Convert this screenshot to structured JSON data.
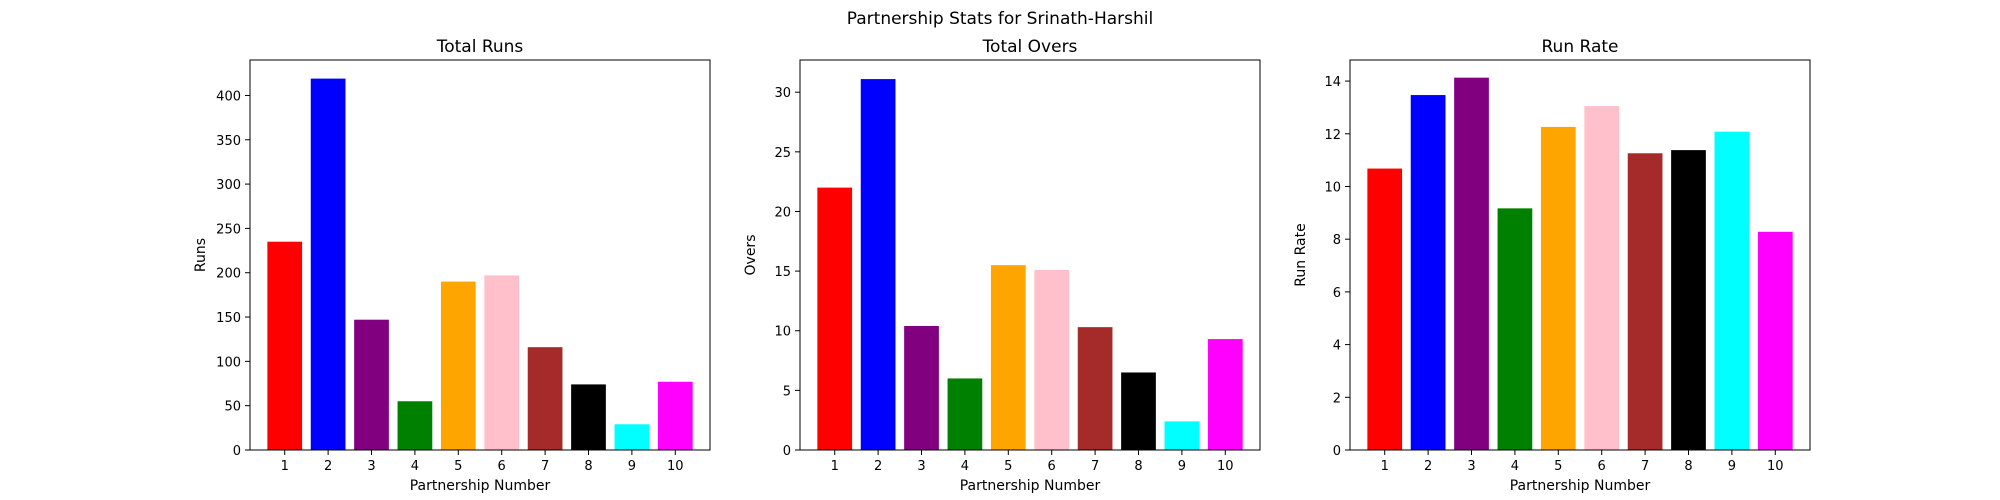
{
  "figure": {
    "suptitle": "Partnership Stats for Srinath-Harshil"
  },
  "chart_data": [
    {
      "type": "bar",
      "title": "Total Runs",
      "xlabel": "Partnership Number",
      "ylabel": "Runs",
      "categories": [
        "1",
        "2",
        "3",
        "4",
        "5",
        "6",
        "7",
        "8",
        "9",
        "10"
      ],
      "values": [
        235,
        419,
        147,
        55,
        190,
        197,
        116,
        74,
        29,
        77
      ],
      "ylim": [
        0,
        440
      ],
      "yticks": [
        0,
        50,
        100,
        150,
        200,
        250,
        300,
        350,
        400
      ],
      "colors": [
        "#ff0000",
        "#0000ff",
        "#800080",
        "#008000",
        "#ffa500",
        "#ffc0cb",
        "#a52a2a",
        "#000000",
        "#00ffff",
        "#ff00ff"
      ],
      "grid": false
    },
    {
      "type": "bar",
      "title": "Total Overs",
      "xlabel": "Partnership Number",
      "ylabel": "Overs",
      "categories": [
        "1",
        "2",
        "3",
        "4",
        "5",
        "6",
        "7",
        "8",
        "9",
        "10"
      ],
      "values": [
        22.0,
        31.1,
        10.4,
        6.0,
        15.5,
        15.1,
        10.3,
        6.5,
        2.4,
        9.3
      ],
      "ylim": [
        0,
        32.7
      ],
      "yticks": [
        0,
        5,
        10,
        15,
        20,
        25,
        30
      ],
      "colors": [
        "#ff0000",
        "#0000ff",
        "#800080",
        "#008000",
        "#ffa500",
        "#ffc0cb",
        "#a52a2a",
        "#000000",
        "#00ffff",
        "#ff00ff"
      ],
      "grid": false
    },
    {
      "type": "bar",
      "title": "Run Rate",
      "xlabel": "Partnership Number",
      "ylabel": "Run Rate",
      "categories": [
        "1",
        "2",
        "3",
        "4",
        "5",
        "6",
        "7",
        "8",
        "9",
        "10"
      ],
      "values": [
        10.68,
        13.47,
        14.13,
        9.17,
        12.26,
        13.05,
        11.26,
        11.38,
        12.08,
        8.28
      ],
      "ylim": [
        0,
        14.8
      ],
      "yticks": [
        0,
        2,
        4,
        6,
        8,
        10,
        12,
        14
      ],
      "colors": [
        "#ff0000",
        "#0000ff",
        "#800080",
        "#008000",
        "#ffa500",
        "#ffc0cb",
        "#a52a2a",
        "#000000",
        "#00ffff",
        "#ff00ff"
      ],
      "grid": false
    }
  ]
}
